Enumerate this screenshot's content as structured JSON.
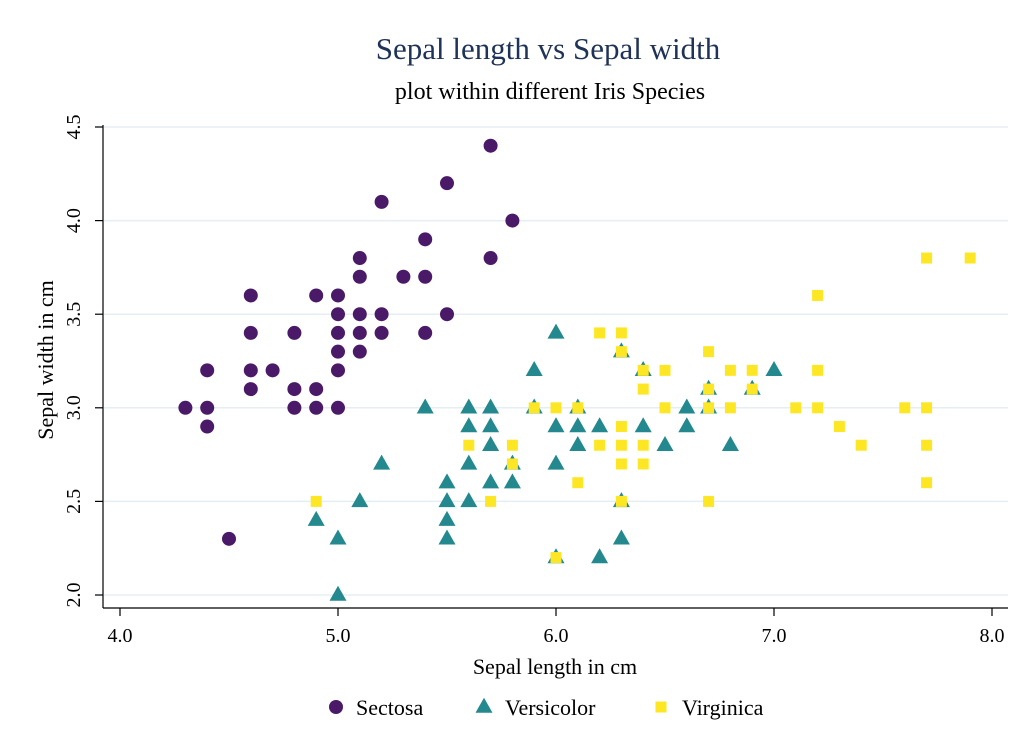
{
  "chart_data": {
    "type": "scatter",
    "title": "Sepal length vs Sepal width",
    "subtitle": "plot within different Iris Species",
    "xlabel": "Sepal length in cm",
    "ylabel": "Sepal width in cm",
    "xlim": [
      4.0,
      8.0
    ],
    "ylim": [
      2.0,
      4.5
    ],
    "xticks": [
      4.0,
      5.0,
      6.0,
      7.0,
      8.0
    ],
    "xtick_labels": [
      "4.0",
      "5.0",
      "6.0",
      "7.0",
      "8.0"
    ],
    "yticks": [
      2.0,
      2.5,
      3.0,
      3.5,
      4.0,
      4.5
    ],
    "ytick_labels": [
      "2.0",
      "2.5",
      "3.0",
      "3.5",
      "4.0",
      "4.5"
    ],
    "grid": "horizontal",
    "legend_position": "bottom",
    "series": [
      {
        "name": "Sectosa",
        "marker": "circle",
        "color": "#4a1a68",
        "points": [
          [
            4.3,
            3.0
          ],
          [
            4.4,
            3.2
          ],
          [
            4.4,
            3.0
          ],
          [
            4.4,
            2.9
          ],
          [
            4.5,
            2.3
          ],
          [
            4.6,
            3.6
          ],
          [
            4.6,
            3.4
          ],
          [
            4.6,
            3.2
          ],
          [
            4.6,
            3.1
          ],
          [
            4.7,
            3.2
          ],
          [
            4.8,
            3.4
          ],
          [
            4.8,
            3.1
          ],
          [
            4.8,
            3.0
          ],
          [
            4.9,
            3.6
          ],
          [
            4.9,
            3.1
          ],
          [
            4.9,
            3.0
          ],
          [
            5.0,
            3.6
          ],
          [
            5.0,
            3.5
          ],
          [
            5.0,
            3.4
          ],
          [
            5.0,
            3.3
          ],
          [
            5.0,
            3.2
          ],
          [
            5.0,
            3.0
          ],
          [
            5.1,
            3.8
          ],
          [
            5.1,
            3.7
          ],
          [
            5.1,
            3.5
          ],
          [
            5.1,
            3.4
          ],
          [
            5.1,
            3.3
          ],
          [
            5.2,
            4.1
          ],
          [
            5.2,
            3.5
          ],
          [
            5.2,
            3.4
          ],
          [
            5.3,
            3.7
          ],
          [
            5.4,
            3.9
          ],
          [
            5.4,
            3.7
          ],
          [
            5.4,
            3.4
          ],
          [
            5.5,
            4.2
          ],
          [
            5.5,
            3.5
          ],
          [
            5.7,
            4.4
          ],
          [
            5.7,
            3.8
          ],
          [
            5.8,
            4.0
          ]
        ]
      },
      {
        "name": "Versicolor",
        "marker": "triangle",
        "color": "#23898e",
        "points": [
          [
            4.9,
            2.4
          ],
          [
            5.0,
            2.3
          ],
          [
            5.0,
            2.0
          ],
          [
            5.1,
            2.5
          ],
          [
            5.2,
            2.7
          ],
          [
            5.4,
            3.0
          ],
          [
            5.5,
            2.6
          ],
          [
            5.5,
            2.5
          ],
          [
            5.5,
            2.4
          ],
          [
            5.5,
            2.3
          ],
          [
            5.6,
            3.0
          ],
          [
            5.6,
            2.9
          ],
          [
            5.6,
            2.7
          ],
          [
            5.6,
            2.5
          ],
          [
            5.7,
            3.0
          ],
          [
            5.7,
            2.9
          ],
          [
            5.7,
            2.8
          ],
          [
            5.7,
            2.6
          ],
          [
            5.8,
            2.7
          ],
          [
            5.8,
            2.6
          ],
          [
            5.9,
            3.2
          ],
          [
            5.9,
            3.0
          ],
          [
            6.0,
            3.4
          ],
          [
            6.0,
            2.9
          ],
          [
            6.0,
            2.7
          ],
          [
            6.0,
            2.2
          ],
          [
            6.1,
            3.0
          ],
          [
            6.1,
            2.9
          ],
          [
            6.1,
            2.8
          ],
          [
            6.2,
            2.9
          ],
          [
            6.2,
            2.2
          ],
          [
            6.3,
            3.3
          ],
          [
            6.3,
            2.5
          ],
          [
            6.3,
            2.3
          ],
          [
            6.4,
            3.2
          ],
          [
            6.4,
            2.9
          ],
          [
            6.5,
            2.8
          ],
          [
            6.6,
            3.0
          ],
          [
            6.6,
            2.9
          ],
          [
            6.7,
            3.1
          ],
          [
            6.7,
            3.0
          ],
          [
            6.8,
            2.8
          ],
          [
            6.9,
            3.1
          ],
          [
            7.0,
            3.2
          ]
        ]
      },
      {
        "name": "Virginica",
        "marker": "square",
        "color": "#fde725",
        "points": [
          [
            4.9,
            2.5
          ],
          [
            5.6,
            2.8
          ],
          [
            5.7,
            2.5
          ],
          [
            5.8,
            2.8
          ],
          [
            5.8,
            2.7
          ],
          [
            5.9,
            3.0
          ],
          [
            6.0,
            3.0
          ],
          [
            6.0,
            2.2
          ],
          [
            6.1,
            3.0
          ],
          [
            6.1,
            2.6
          ],
          [
            6.2,
            3.4
          ],
          [
            6.2,
            2.8
          ],
          [
            6.3,
            3.4
          ],
          [
            6.3,
            3.3
          ],
          [
            6.3,
            2.9
          ],
          [
            6.3,
            2.8
          ],
          [
            6.3,
            2.7
          ],
          [
            6.3,
            2.5
          ],
          [
            6.4,
            3.2
          ],
          [
            6.4,
            3.1
          ],
          [
            6.4,
            2.8
          ],
          [
            6.4,
            2.7
          ],
          [
            6.5,
            3.2
          ],
          [
            6.5,
            3.0
          ],
          [
            6.7,
            3.3
          ],
          [
            6.7,
            3.1
          ],
          [
            6.7,
            3.0
          ],
          [
            6.7,
            2.5
          ],
          [
            6.8,
            3.2
          ],
          [
            6.8,
            3.0
          ],
          [
            6.9,
            3.2
          ],
          [
            6.9,
            3.1
          ],
          [
            7.1,
            3.0
          ],
          [
            7.2,
            3.6
          ],
          [
            7.2,
            3.2
          ],
          [
            7.2,
            3.0
          ],
          [
            7.3,
            2.9
          ],
          [
            7.4,
            2.8
          ],
          [
            7.6,
            3.0
          ],
          [
            7.7,
            3.8
          ],
          [
            7.7,
            3.0
          ],
          [
            7.7,
            2.8
          ],
          [
            7.7,
            2.6
          ],
          [
            7.9,
            3.8
          ]
        ]
      }
    ]
  }
}
